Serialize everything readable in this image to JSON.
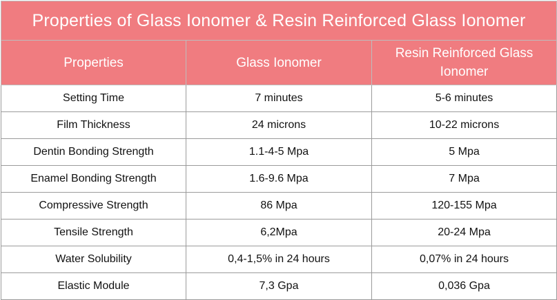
{
  "title": "Properties of Glass Ionomer & Resin Reinforced Glass Ionomer",
  "columns": [
    "Properties",
    "Glass Ionomer",
    "Resin Reinforced Glass Ionomer"
  ],
  "rows": [
    {
      "property": "Setting Time",
      "glass_ionomer": "7 minutes",
      "resin_reinforced": "5-6 minutes"
    },
    {
      "property": "Film Thickness",
      "glass_ionomer": "24 microns",
      "resin_reinforced": "10-22 microns"
    },
    {
      "property": "Dentin Bonding Strength",
      "glass_ionomer": "1.1-4-5 Mpa",
      "resin_reinforced": "5 Mpa"
    },
    {
      "property": "Enamel Bonding Strength",
      "glass_ionomer": "1.6-9.6 Mpa",
      "resin_reinforced": "7 Mpa"
    },
    {
      "property": "Compressive Strength",
      "glass_ionomer": "86 Mpa",
      "resin_reinforced": "120-155 Mpa"
    },
    {
      "property": "Tensile Strength",
      "glass_ionomer": "6,2Mpa",
      "resin_reinforced": "20-24 Mpa"
    },
    {
      "property": "Water Solubility",
      "glass_ionomer": "0,4-1,5% in 24 hours",
      "resin_reinforced": "0,07% in 24 hours"
    },
    {
      "property": "Elastic Module",
      "glass_ionomer": "7,3 Gpa",
      "resin_reinforced": "0,036 Gpa"
    }
  ],
  "colors": {
    "header_bg": "#f07c80",
    "header_text": "#ffffff",
    "cell_text": "#111111",
    "border": "#9a9a9a"
  }
}
